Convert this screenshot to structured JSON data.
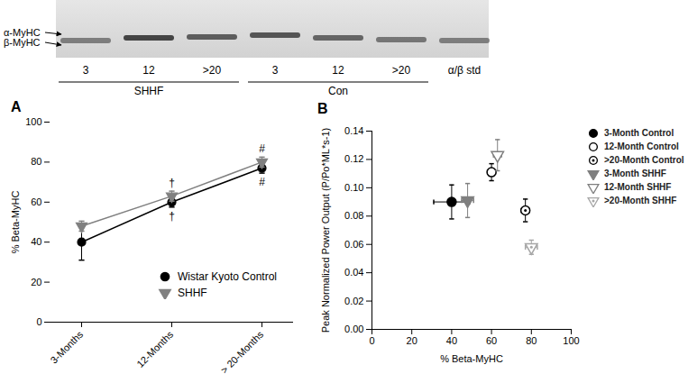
{
  "gel": {
    "band_labels": [
      "α-MyHC",
      "β-MyHC"
    ],
    "lanes": [
      {
        "label": "3",
        "group": "SHHF"
      },
      {
        "label": "12",
        "group": "SHHF"
      },
      {
        "label": ">20",
        "group": "SHHF"
      },
      {
        "label": "3",
        "group": "Con"
      },
      {
        "label": "12",
        "group": "Con"
      },
      {
        "label": ">20",
        "group": "Con"
      },
      {
        "label": "α/β std",
        "group": null
      }
    ]
  },
  "chart_data": [
    {
      "type": "line",
      "title": "A",
      "y_label": "% Beta-MyHC",
      "categories": [
        "3-Months",
        "12-Months",
        "> 20-Months"
      ],
      "ylim": [
        0,
        100
      ],
      "yticks": [
        0,
        20,
        40,
        60,
        80,
        100
      ],
      "legend": "lower right",
      "series": [
        {
          "name": "Wistar Kyoto Control",
          "color": "#000000",
          "marker": "circle",
          "values": [
            40,
            60,
            77
          ],
          "error": [
            9,
            2.5,
            2.5
          ]
        },
        {
          "name": "SHHF",
          "color": "#808080",
          "marker": "triangle-down",
          "values": [
            48,
            63,
            80
          ],
          "error": [
            2.5,
            2.5,
            2.5
          ]
        }
      ],
      "annotations": [
        {
          "text": "†",
          "category": "12-Months",
          "series": "SHHF",
          "side": "above"
        },
        {
          "text": "†",
          "category": "12-Months",
          "series": "Wistar Kyoto Control",
          "side": "below"
        },
        {
          "text": "#",
          "category": "> 20-Months",
          "series": "SHHF",
          "side": "above"
        },
        {
          "text": "#",
          "category": "> 20-Months",
          "series": "Wistar Kyoto Control",
          "side": "below"
        }
      ]
    },
    {
      "type": "scatter",
      "title": "B",
      "x_label": "% Beta-MyHC",
      "y_label": "Peak Normalized Power Output (P/Po*ML*s-1)",
      "xlim": [
        0,
        100
      ],
      "xticks": [
        0,
        20,
        40,
        60,
        80,
        100
      ],
      "ylim": [
        0,
        0.14
      ],
      "yticks": [
        {
          "value": 0,
          "label": "0.00"
        },
        {
          "value": 0.02,
          "label": "0.02"
        },
        {
          "value": 0.04,
          "label": "0.04"
        },
        {
          "value": 0.06,
          "label": "0.06"
        },
        {
          "value": 0.08,
          "label": "0.08"
        },
        {
          "value": 0.1,
          "label": "0.10"
        },
        {
          "value": 0.12,
          "label": "0.12"
        },
        {
          "value": 0.14,
          "label": "0.14"
        }
      ],
      "legend": "right",
      "series": [
        {
          "name": "3-Month Control",
          "color": "#000000",
          "marker": "circle",
          "x": [
            40
          ],
          "values": [
            0.09
          ],
          "x_error": [
            9
          ],
          "y_error": [
            0.012
          ]
        },
        {
          "name": "12-Month Control",
          "color": "#000000",
          "marker": "circle-open",
          "x": [
            60
          ],
          "values": [
            0.111
          ],
          "x_error": [
            2
          ],
          "y_error": [
            0.006
          ]
        },
        {
          "name": ">20-Month Control",
          "color": "#000000",
          "marker": "circle-dot",
          "x": [
            77
          ],
          "values": [
            0.084
          ],
          "x_error": [
            2
          ],
          "y_error": [
            0.008
          ]
        },
        {
          "name": "3-Month SHHF",
          "color": "#7f7f7f",
          "marker": "triangle-down",
          "x": [
            48
          ],
          "values": [
            0.091
          ],
          "x_error": [
            3
          ],
          "y_error": [
            0.012
          ]
        },
        {
          "name": "12-Month SHHF",
          "color": "#7f7f7f",
          "marker": "triangle-down-open",
          "x": [
            63
          ],
          "values": [
            0.123
          ],
          "x_error": [
            2
          ],
          "y_error": [
            0.011
          ]
        },
        {
          "name": ">20-Month SHHF",
          "color": "#a6a6a6",
          "marker": "triangle-down-dot",
          "x": [
            80
          ],
          "values": [
            0.058
          ],
          "x_error": [
            3
          ],
          "y_error": [
            0.005
          ]
        }
      ]
    }
  ]
}
